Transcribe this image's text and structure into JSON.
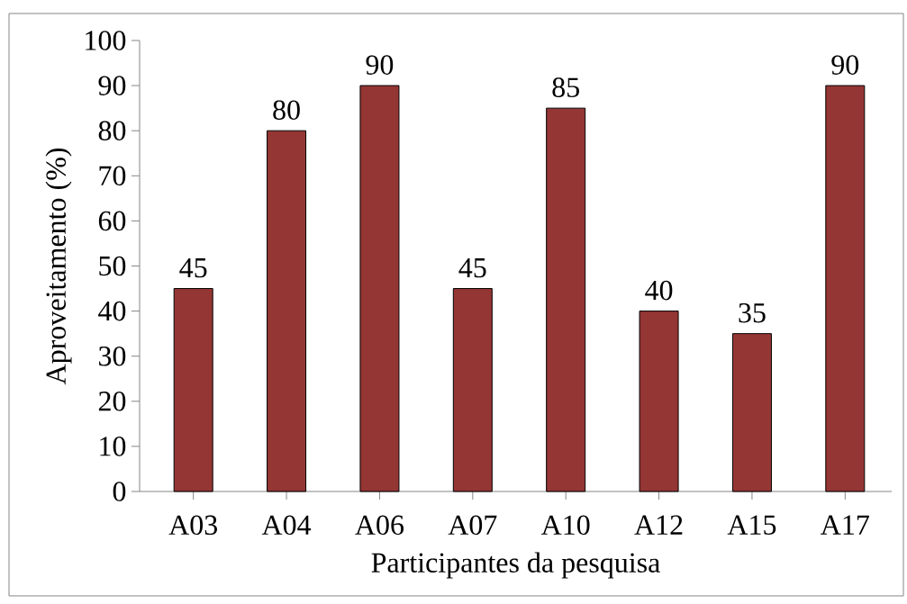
{
  "chart_data": {
    "type": "bar",
    "xlabel": "Participantes da pesquisa",
    "ylabel": "Aproveitamento (%)",
    "categories": [
      "A03",
      "A04",
      "A06",
      "A07",
      "A10",
      "A12",
      "A15",
      "A17"
    ],
    "values": [
      45,
      80,
      90,
      45,
      85,
      40,
      35,
      90
    ],
    "color": "#943634",
    "ylim": [
      0,
      100
    ],
    "yticks": [
      0,
      10,
      20,
      30,
      40,
      50,
      60,
      70,
      80,
      90,
      100
    ],
    "data_labels": true
  }
}
